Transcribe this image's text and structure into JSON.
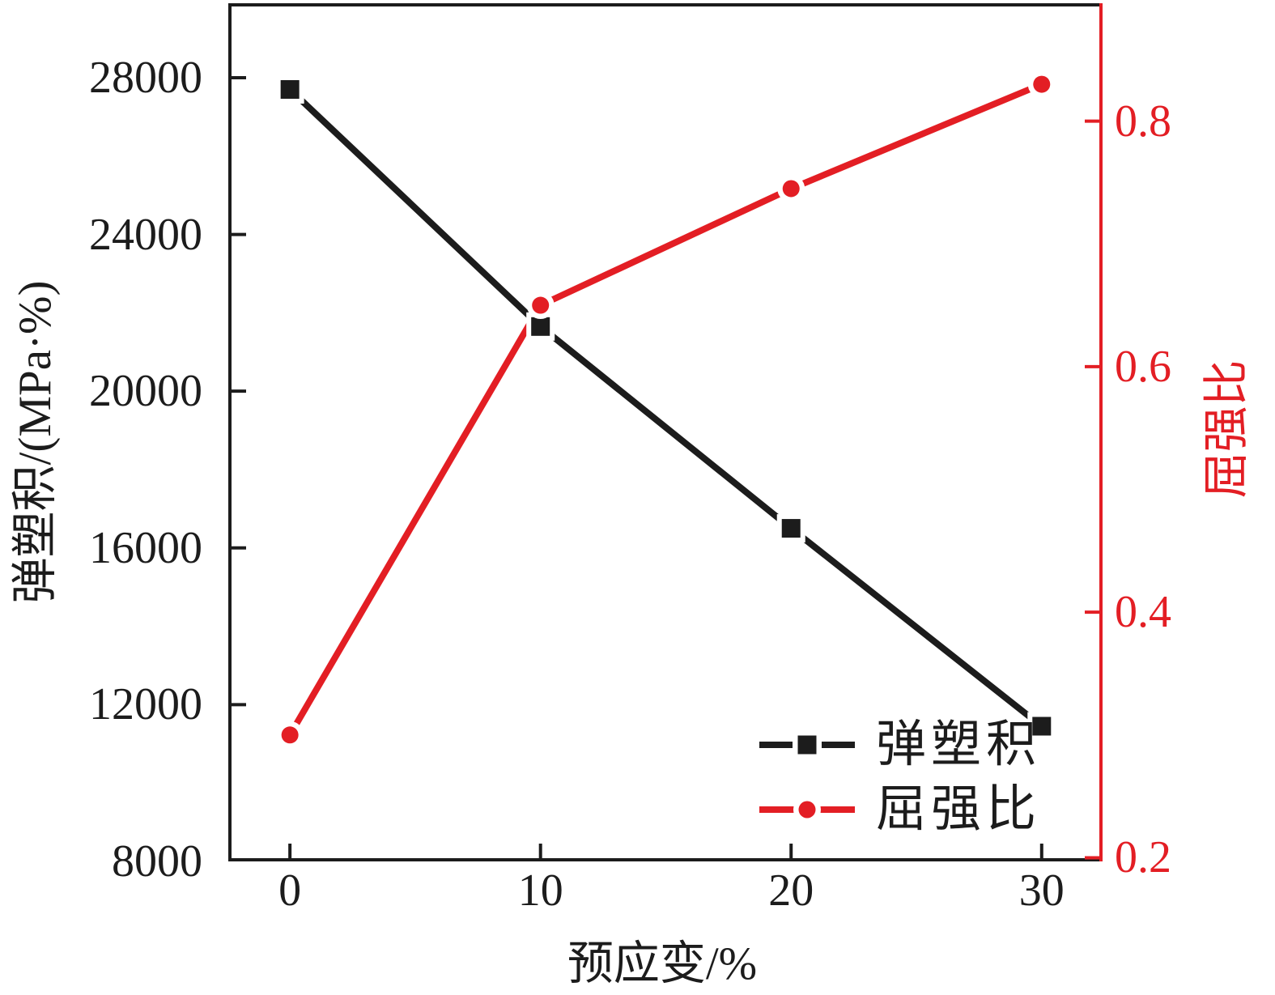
{
  "figure": {
    "background": "#ffffff",
    "black": "#1c1c1c",
    "red": "#e31e24"
  },
  "chart_data": {
    "type": "line",
    "title": "",
    "x": [
      0,
      10,
      20,
      30
    ],
    "xlabel": "预应变/%",
    "x_axis": {
      "ticks": [
        0,
        10,
        20,
        30
      ],
      "range": [
        -2.46,
        32.43
      ]
    },
    "left_axis": {
      "label": "弹塑积/(MPa·%)",
      "ticks": [
        8000,
        12000,
        16000,
        20000,
        24000,
        28000
      ],
      "range": [
        8000,
        29900
      ],
      "color": "#1c1c1c"
    },
    "right_axis": {
      "label": "屈强比",
      "ticks": [
        0.2,
        0.4,
        0.6,
        0.8
      ],
      "range": [
        0.197,
        0.896
      ],
      "color": "#e31e24"
    },
    "series": [
      {
        "name": "弹塑积",
        "axis": "left",
        "marker": "square",
        "color": "#1c1c1c",
        "values": [
          27700,
          21650,
          16500,
          11450
        ]
      },
      {
        "name": "屈强比",
        "axis": "right",
        "marker": "circle",
        "color": "#e31e24",
        "values": [
          0.3,
          0.65,
          0.745,
          0.83
        ]
      }
    ],
    "grid": false,
    "legend_position": "lower-right"
  }
}
